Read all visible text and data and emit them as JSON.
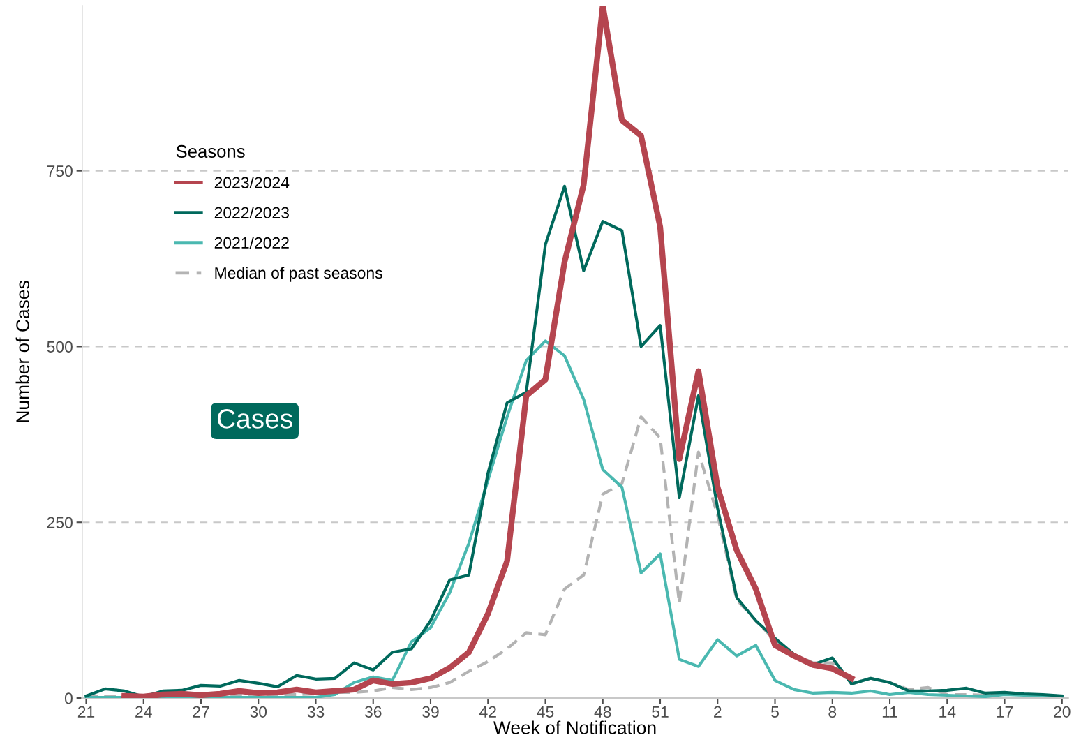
{
  "chart_data": {
    "type": "line",
    "xlabel": "Week of Notification",
    "ylabel": "Number of Cases",
    "legend_title": "Seasons",
    "categories": [
      "21",
      null,
      null,
      "24",
      null,
      null,
      "27",
      null,
      null,
      "30",
      null,
      null,
      "33",
      null,
      null,
      "36",
      null,
      null,
      "39",
      null,
      null,
      "42",
      null,
      null,
      "45",
      null,
      null,
      "48",
      null,
      null,
      "51",
      null,
      null,
      "2",
      null,
      null,
      "5",
      null,
      null,
      "8",
      null,
      null,
      "11",
      null,
      null,
      "14",
      null,
      null,
      "17",
      null,
      null,
      "20"
    ],
    "series": [
      {
        "name": "2023/2024",
        "color": "#b5454f",
        "line_style": "solid",
        "values": [
          null,
          null,
          3,
          2,
          5,
          6,
          4,
          6,
          10,
          7,
          8,
          12,
          8,
          10,
          12,
          25,
          20,
          22,
          28,
          43,
          65,
          120,
          195,
          430,
          453,
          620,
          730,
          985,
          822,
          800,
          670,
          340,
          465,
          300,
          210,
          155,
          75,
          60,
          47,
          42,
          28,
          null,
          null,
          null,
          null,
          null,
          null,
          null,
          null,
          null,
          null,
          null
        ]
      },
      {
        "name": "2022/2023",
        "color": "#00695c",
        "line_style": "solid",
        "values": [
          3,
          13,
          10,
          2,
          10,
          11,
          18,
          17,
          25,
          21,
          16,
          32,
          27,
          28,
          50,
          40,
          65,
          70,
          110,
          168,
          175,
          320,
          420,
          435,
          645,
          728,
          608,
          678,
          665,
          500,
          530,
          285,
          430,
          270,
          143,
          110,
          85,
          62,
          48,
          57,
          20,
          28,
          22,
          10,
          10,
          11,
          14,
          7,
          8,
          6,
          5,
          3
        ]
      },
      {
        "name": "2021/2022",
        "color": "#4ab8b0",
        "line_style": "solid",
        "values": [
          1,
          1,
          1,
          1,
          1,
          1,
          1,
          1,
          1,
          1,
          1,
          1,
          1,
          5,
          22,
          30,
          25,
          80,
          100,
          150,
          220,
          310,
          400,
          480,
          508,
          487,
          425,
          325,
          300,
          178,
          205,
          55,
          45,
          83,
          60,
          75,
          25,
          12,
          7,
          8,
          7,
          10,
          5,
          8,
          5,
          4,
          3,
          2,
          5,
          4,
          3,
          3
        ]
      },
      {
        "name": "Median of past seasons",
        "color": "#b3b3b3",
        "line_style": "dashed",
        "values": [
          2,
          3,
          3,
          2,
          3,
          3,
          3,
          4,
          4,
          5,
          5,
          5,
          6,
          8,
          8,
          10,
          15,
          12,
          15,
          22,
          38,
          52,
          70,
          93,
          90,
          155,
          175,
          290,
          305,
          400,
          370,
          135,
          350,
          260,
          140,
          110,
          82,
          62,
          50,
          50,
          20,
          28,
          22,
          12,
          15,
          5,
          5,
          4,
          6,
          5,
          4,
          3
        ]
      }
    ],
    "ylim": [
      0,
      985
    ],
    "yticks": [
      0,
      250,
      500,
      750
    ],
    "grid": "y",
    "legend": "top left",
    "marker": "none",
    "annotations": [
      "Cases"
    ]
  }
}
